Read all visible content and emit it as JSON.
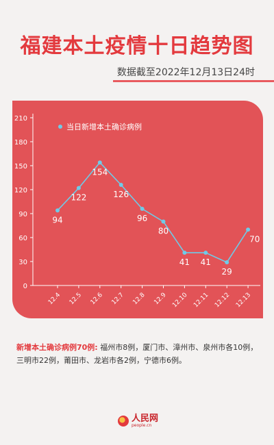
{
  "header": {
    "title": "福建本土疫情十日趋势图",
    "subtitle": "数据截至2022年12月13日24时"
  },
  "chart_data": {
    "type": "line",
    "title": "",
    "xlabel": "",
    "ylabel": "",
    "categories": [
      "12.4",
      "12.5",
      "12.6",
      "12.7",
      "12.8",
      "12.9",
      "12.10",
      "12.11",
      "12.12",
      "12.13"
    ],
    "y_ticks": [
      0,
      30,
      60,
      90,
      120,
      150,
      180,
      210
    ],
    "ylim": [
      0,
      210
    ],
    "grid": false,
    "legend_position": "top-left",
    "series": [
      {
        "name": "当日新增本土确诊病例",
        "values": [
          94,
          122,
          154,
          126,
          96,
          80,
          41,
          41,
          29,
          70
        ]
      }
    ],
    "colors": {
      "line": "#6fcbe8",
      "background": "#e25357",
      "axis": "#ffffff"
    }
  },
  "note": {
    "highlight": "新增本土确诊病例70例:",
    "text": " 福州市8例，厦门市、漳州市、泉州市各10例，三明市22例，莆田市、龙岩市各2例，宁德市6例。"
  },
  "logo": {
    "name": "人民网",
    "url_text": "people.cn"
  }
}
